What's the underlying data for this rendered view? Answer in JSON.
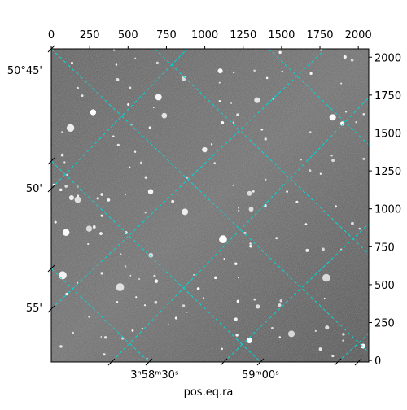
{
  "chart_data": {
    "type": "image",
    "xlabel": "pos.eq.ra",
    "xlim": [
      0,
      2068
    ],
    "xticks": [
      0,
      250,
      500,
      750,
      1000,
      1250,
      1500,
      1750,
      2000
    ],
    "ylim": [
      -10,
      2055
    ],
    "yticks": [
      0,
      250,
      500,
      750,
      1000,
      1250,
      1500,
      1750,
      2000
    ],
    "ra_tick_labels": [
      "3ʰ58ᵐ30ˢ",
      "59ᵐ00ˢ"
    ],
    "dec_tick_labels": [
      "50°45'",
      "50'",
      "55'"
    ],
    "grid_color": "#00d8d8"
  }
}
